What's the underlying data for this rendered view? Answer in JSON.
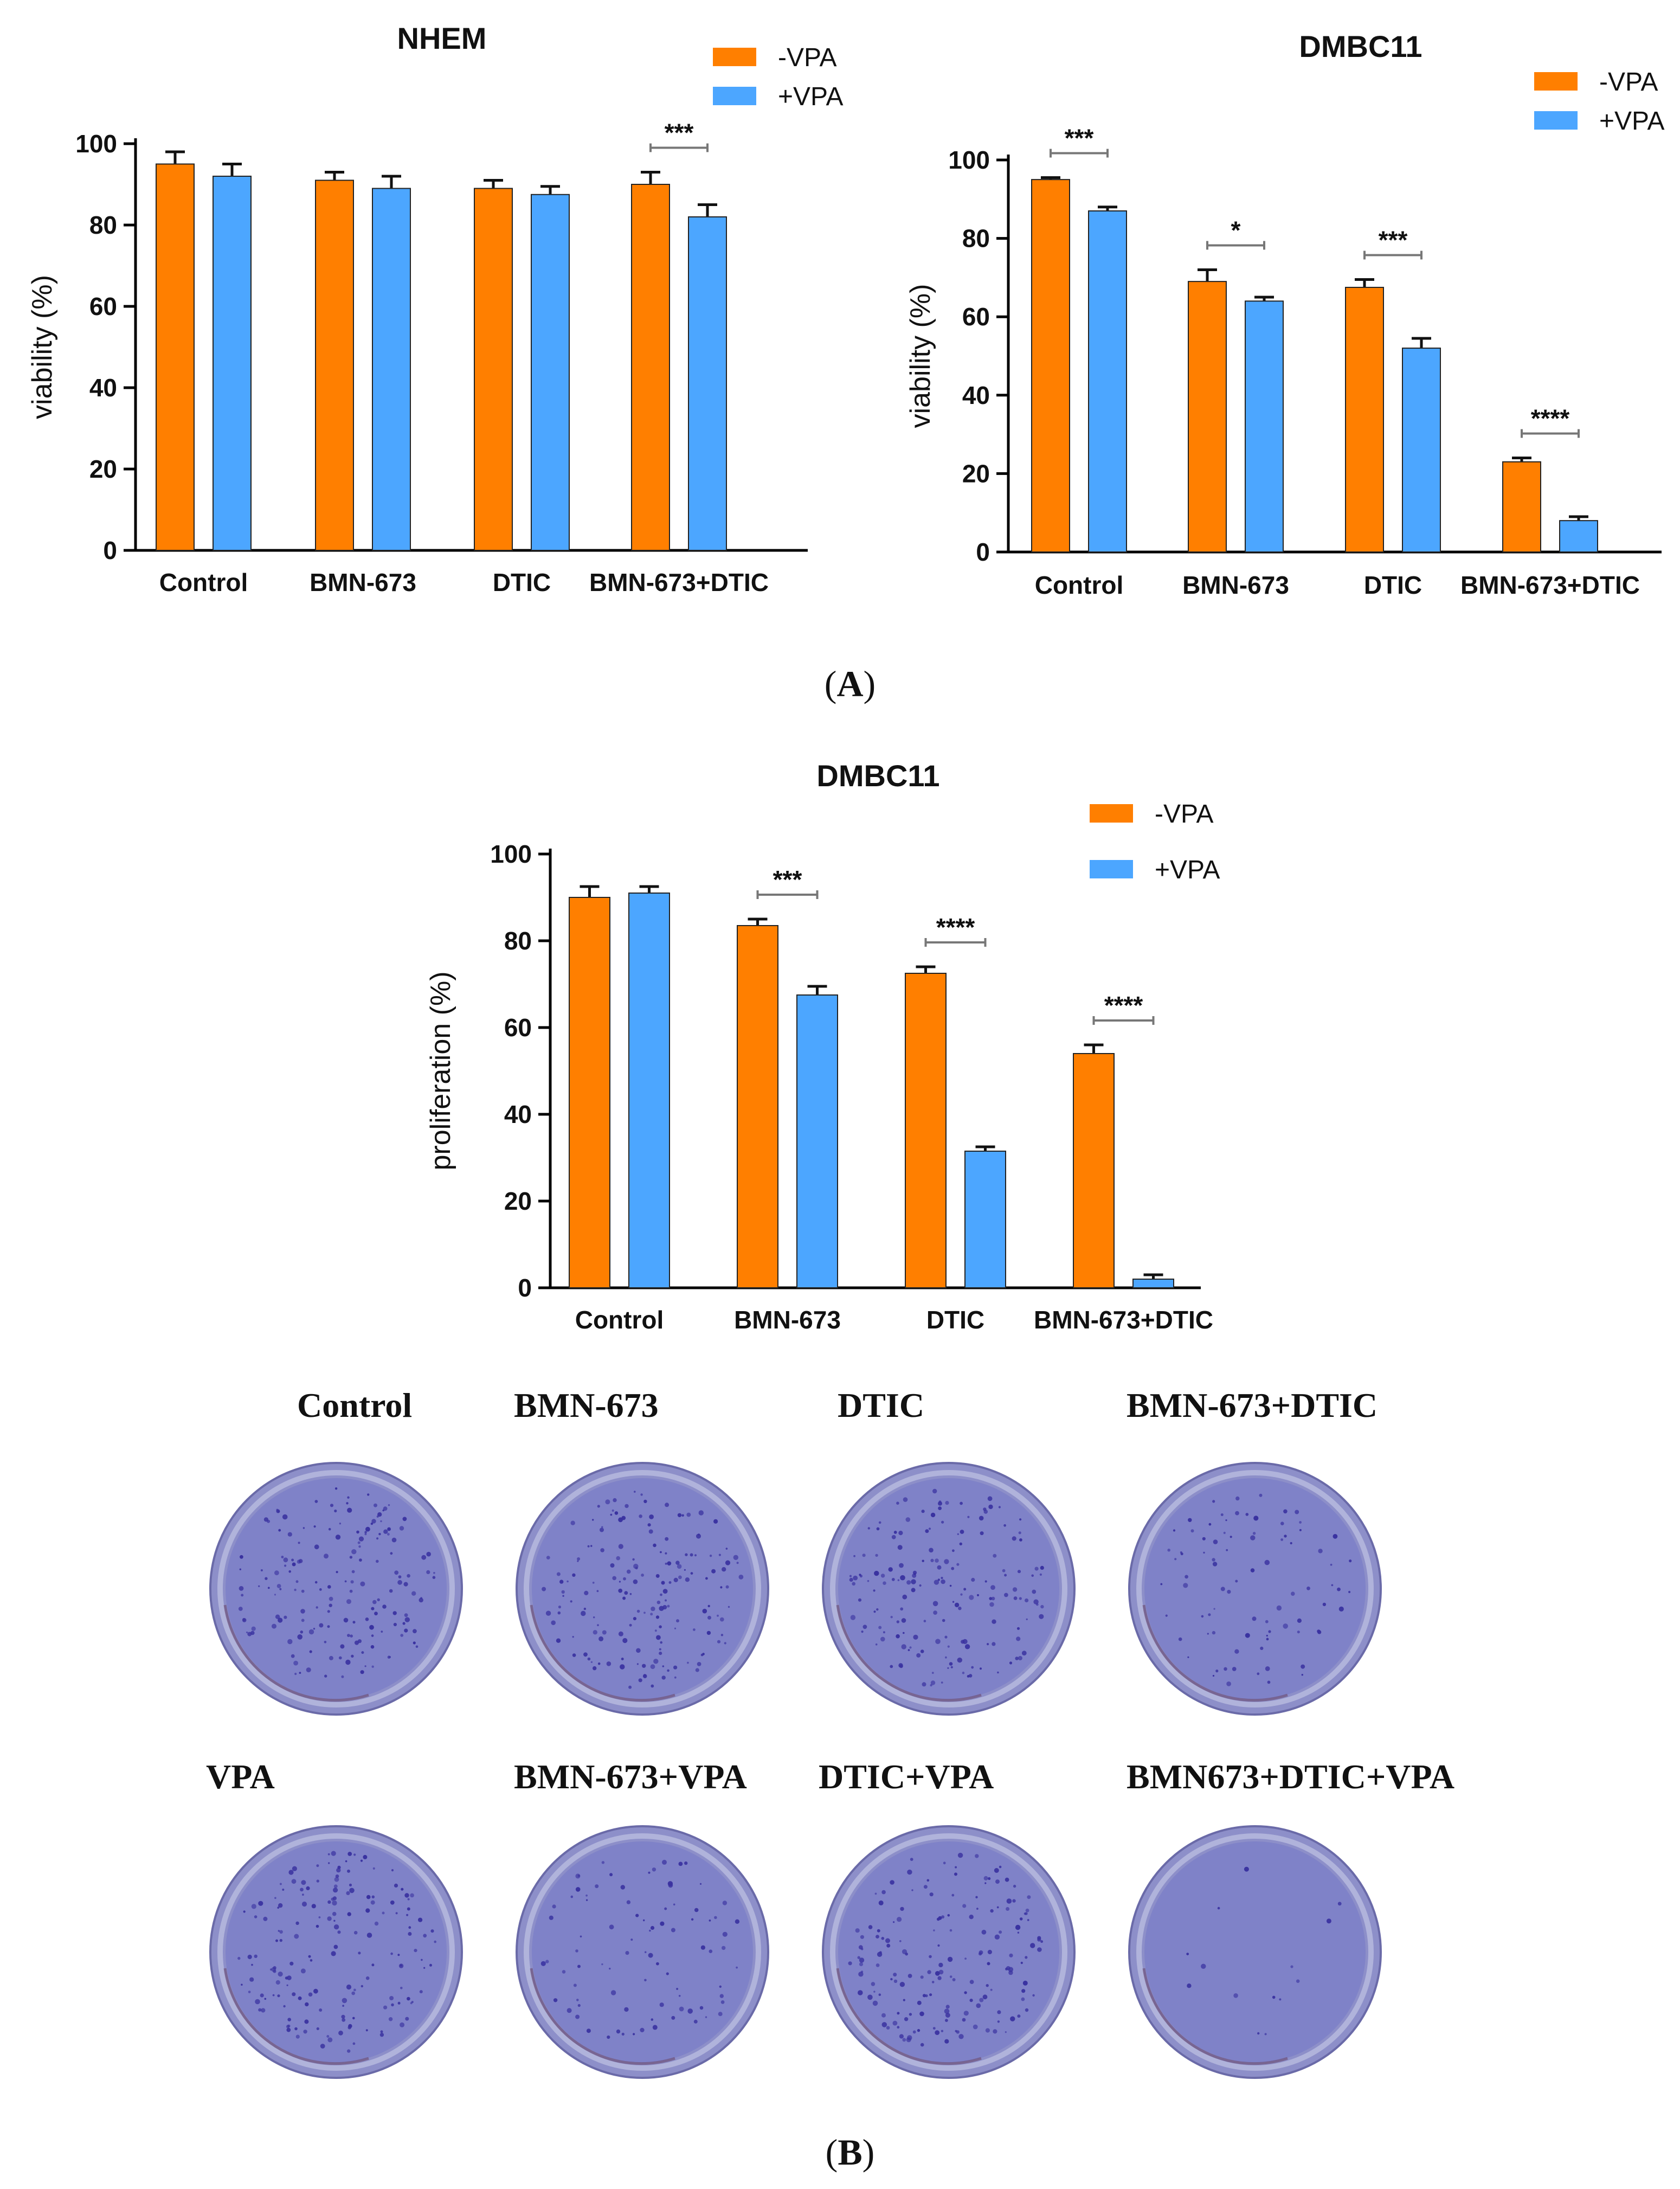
{
  "colors": {
    "minus_vpa": "#FF7F00",
    "plus_vpa": "#4CA6FF",
    "dish_blue": "#7f82c8",
    "colony": "#3a32a0",
    "axis": "#000000",
    "bracket": "#777777"
  },
  "panel_a_label": "A",
  "panel_b_label": "B",
  "chart_data": [
    {
      "id": "nhem",
      "type": "bar",
      "title": "NHEM",
      "ylabel": "viability (%)",
      "xlabel": "",
      "ylim": [
        0,
        100
      ],
      "yticks": [
        0,
        20,
        40,
        60,
        80,
        100
      ],
      "categories": [
        "Control",
        "BMN-673",
        "DTIC",
        "BMN-673+DTIC"
      ],
      "legend_position": "top-right",
      "series": [
        {
          "name": "-VPA",
          "values": [
            95,
            91,
            89,
            90
          ],
          "errors": [
            3,
            2,
            2,
            3
          ]
        },
        {
          "name": "+VPA",
          "values": [
            92,
            89,
            87.5,
            82
          ],
          "errors": [
            3,
            3,
            2,
            3
          ]
        }
      ],
      "significance": [
        {
          "category": "BMN-673+DTIC",
          "label": "***"
        }
      ]
    },
    {
      "id": "dmbc11-viability",
      "type": "bar",
      "title": "DMBC11",
      "ylabel": "viability (%)",
      "xlabel": "",
      "ylim": [
        0,
        100
      ],
      "yticks": [
        0,
        20,
        40,
        60,
        80,
        100
      ],
      "categories": [
        "Control",
        "BMN-673",
        "DTIC",
        "BMN-673+DTIC"
      ],
      "legend_position": "top-right",
      "series": [
        {
          "name": "-VPA",
          "values": [
            95,
            69,
            67.5,
            23
          ],
          "errors": [
            0.5,
            3,
            2,
            1
          ]
        },
        {
          "name": "+VPA",
          "values": [
            87,
            64,
            52,
            8
          ],
          "errors": [
            1,
            1,
            2.5,
            1
          ]
        }
      ],
      "significance": [
        {
          "category": "Control",
          "label": "***"
        },
        {
          "category": "BMN-673",
          "label": "*"
        },
        {
          "category": "DTIC",
          "label": "***"
        },
        {
          "category": "BMN-673+DTIC",
          "label": "****"
        }
      ]
    },
    {
      "id": "dmbc11-proliferation",
      "type": "bar",
      "title": "DMBC11",
      "ylabel": "proliferation (%)",
      "xlabel": "",
      "ylim": [
        0,
        100
      ],
      "yticks": [
        0,
        20,
        40,
        60,
        80,
        100
      ],
      "categories": [
        "Control",
        "BMN-673",
        "DTIC",
        "BMN-673+DTIC"
      ],
      "legend_position": "top-right",
      "series": [
        {
          "name": "-VPA",
          "values": [
            90,
            83.5,
            72.5,
            54
          ],
          "errors": [
            2.5,
            1.5,
            1.5,
            2
          ]
        },
        {
          "name": "+VPA",
          "values": [
            91,
            67.5,
            31.5,
            2
          ],
          "errors": [
            1.5,
            2,
            1,
            1
          ]
        }
      ],
      "significance": [
        {
          "category": "BMN-673",
          "label": "***"
        },
        {
          "category": "DTIC",
          "label": "****"
        },
        {
          "category": "BMN-673+DTIC",
          "label": "****"
        }
      ]
    }
  ],
  "dishes": [
    {
      "label": "Control",
      "density": "high"
    },
    {
      "label": "BMN-673",
      "density": "high"
    },
    {
      "label": "DTIC",
      "density": "high"
    },
    {
      "label": "BMN-673+DTIC",
      "density": "medium"
    },
    {
      "label": "VPA",
      "density": "high"
    },
    {
      "label": "BMN-673+VPA",
      "density": "medium"
    },
    {
      "label": "DTIC+VPA",
      "density": "high"
    },
    {
      "label": "BMN673+DTIC+VPA",
      "density": "very-low"
    }
  ]
}
